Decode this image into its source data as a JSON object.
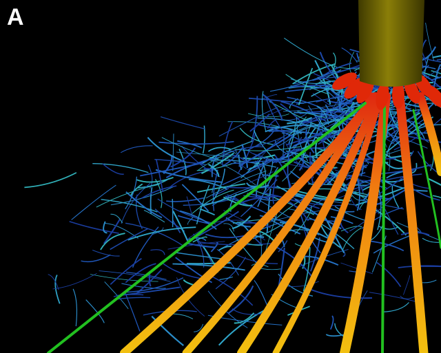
{
  "panel_label": "A"
}
